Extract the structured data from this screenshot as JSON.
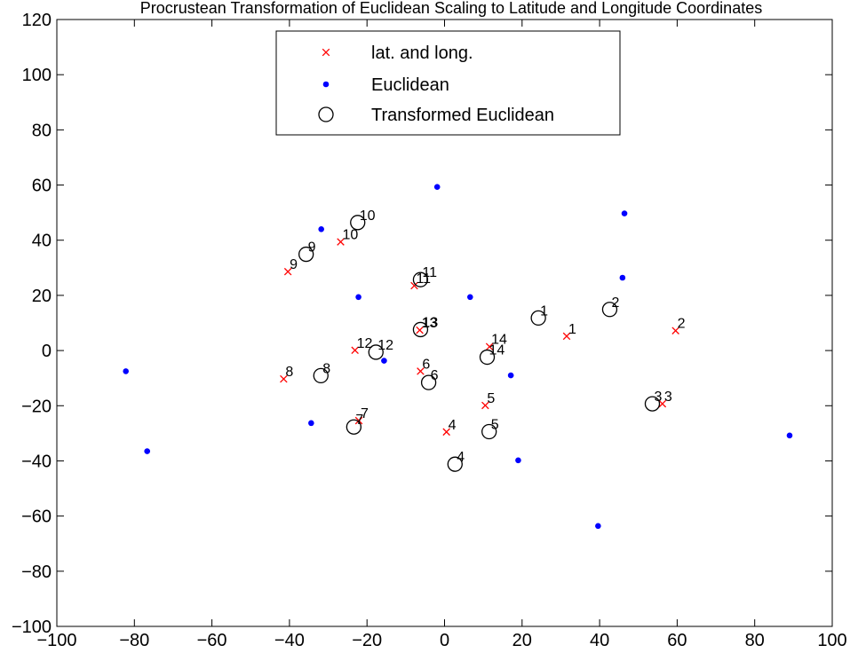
{
  "chart_data": {
    "type": "scatter",
    "title": "Procrustean Transformation of Euclidean Scaling to Latitude and Longitude Coordinates",
    "xlabel": "",
    "ylabel": "",
    "xlim": [
      -100,
      100
    ],
    "ylim": [
      -100,
      120
    ],
    "xticks": [
      -100,
      -80,
      -60,
      -40,
      -20,
      0,
      20,
      40,
      60,
      80,
      100
    ],
    "yticks": [
      -100,
      -80,
      -60,
      -40,
      -20,
      0,
      20,
      40,
      60,
      80,
      100,
      120
    ],
    "grid": false,
    "legend_position": "top-center",
    "series": [
      {
        "name": "lat. and long.",
        "marker": "x",
        "color": "#ff0000",
        "points": [
          {
            "x": 31.5,
            "y": 5.2,
            "label": "1"
          },
          {
            "x": 59.6,
            "y": 7.2,
            "label": "2"
          },
          {
            "x": 56.2,
            "y": -19.3,
            "label": "3"
          },
          {
            "x": 0.5,
            "y": -29.5,
            "label": "4"
          },
          {
            "x": 10.5,
            "y": -19.9,
            "label": "5"
          },
          {
            "x": -6.2,
            "y": -7.5,
            "label": "6"
          },
          {
            "x": -22.1,
            "y": -25.4,
            "label": "7"
          },
          {
            "x": -41.5,
            "y": -10.3,
            "label": "8"
          },
          {
            "x": -40.4,
            "y": 28.6,
            "label": "9"
          },
          {
            "x": -26.8,
            "y": 39.4,
            "label": "10"
          },
          {
            "x": -7.8,
            "y": 23.5,
            "label": "11"
          },
          {
            "x": -23.1,
            "y": 0.1,
            "label": "12"
          },
          {
            "x": -6.4,
            "y": 7.4,
            "label": "13"
          },
          {
            "x": 11.6,
            "y": 1.4,
            "label": "14"
          }
        ]
      },
      {
        "name": "Euclidean",
        "marker": "dot",
        "color": "#0000ff",
        "points": [
          {
            "x": -1.9,
            "y": 59.3
          },
          {
            "x": 46.4,
            "y": 49.7
          },
          {
            "x": -31.8,
            "y": 44.0
          },
          {
            "x": 45.9,
            "y": 26.4
          },
          {
            "x": -22.2,
            "y": 19.4
          },
          {
            "x": 6.6,
            "y": 19.4
          },
          {
            "x": -82.2,
            "y": -7.5
          },
          {
            "x": -15.6,
            "y": -3.7
          },
          {
            "x": 17.1,
            "y": -9.0
          },
          {
            "x": -34.4,
            "y": -26.3
          },
          {
            "x": 89.0,
            "y": -30.8
          },
          {
            "x": -76.7,
            "y": -36.5
          },
          {
            "x": 19.0,
            "y": -39.8
          },
          {
            "x": 39.6,
            "y": -63.6
          }
        ]
      },
      {
        "name": "Transformed Euclidean",
        "marker": "circle",
        "color": "#000000",
        "points": [
          {
            "x": 24.2,
            "y": 11.8,
            "label": "1"
          },
          {
            "x": 42.6,
            "y": 14.9,
            "label": "2"
          },
          {
            "x": 53.6,
            "y": -19.3,
            "label": "3"
          },
          {
            "x": 2.7,
            "y": -41.2,
            "label": "4"
          },
          {
            "x": 11.5,
            "y": -29.4,
            "label": "5"
          },
          {
            "x": -4.1,
            "y": -11.6,
            "label": "6"
          },
          {
            "x": -23.4,
            "y": -27.7,
            "label": "7"
          },
          {
            "x": -31.9,
            "y": -9.1,
            "label": "8"
          },
          {
            "x": -35.7,
            "y": 34.9,
            "label": "9"
          },
          {
            "x": -22.4,
            "y": 46.4,
            "label": "10"
          },
          {
            "x": -6.2,
            "y": 25.7,
            "label": "11"
          },
          {
            "x": -17.7,
            "y": -0.6,
            "label": "12"
          },
          {
            "x": -6.2,
            "y": 7.6,
            "label": "13"
          },
          {
            "x": 11.0,
            "y": -2.4,
            "label": "14"
          }
        ]
      }
    ]
  }
}
